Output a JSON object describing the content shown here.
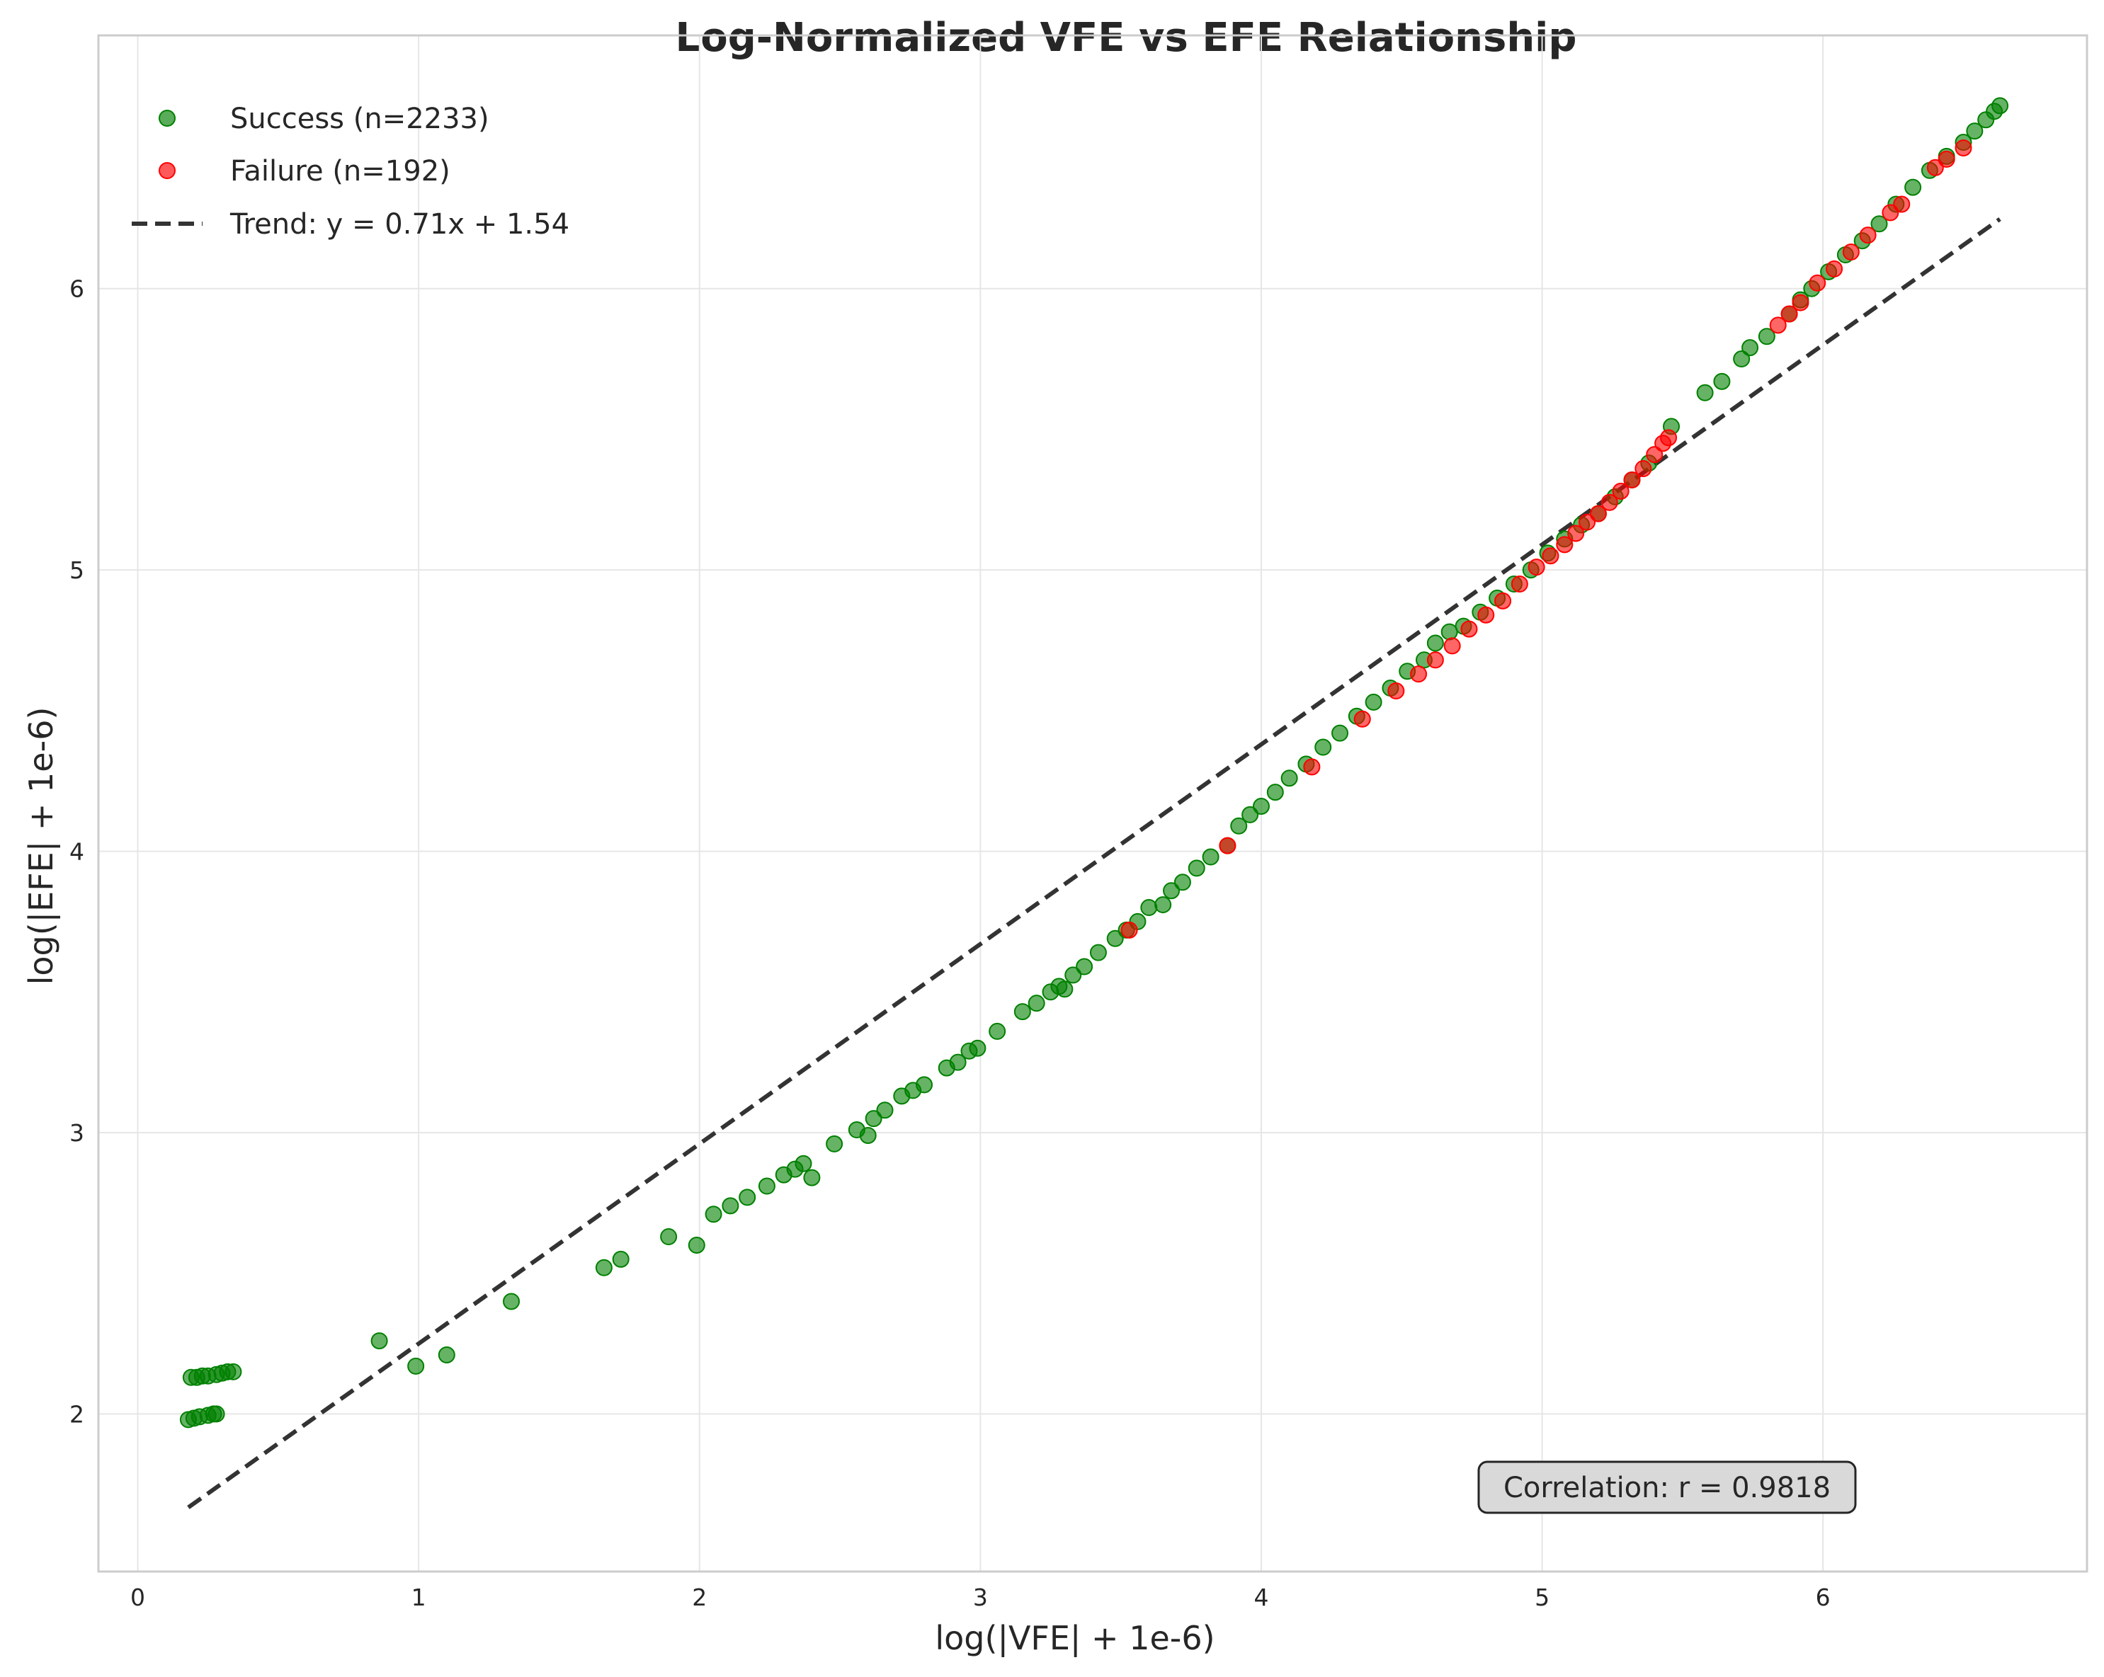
{
  "chart_data": {
    "type": "scatter",
    "title": "Log-Normalized VFE vs EFE Relationship",
    "xlabel": "log(|VFE| + 1e-6)",
    "ylabel": "log(|EFE| + 1e-6)",
    "xlim": [
      -0.14,
      6.94
    ],
    "ylim": [
      1.44,
      6.9
    ],
    "xticks": [
      0,
      1,
      2,
      3,
      4,
      5,
      6
    ],
    "yticks": [
      2,
      3,
      4,
      5,
      6
    ],
    "grid": true,
    "legend_position": "top-left",
    "annotation": "Correlation: r = 0.9818",
    "series": [
      {
        "name": "Success (n=2233)",
        "color": "#008000",
        "points": [
          [
            0.18,
            1.98
          ],
          [
            0.2,
            1.985
          ],
          [
            0.22,
            1.99
          ],
          [
            0.25,
            1.995
          ],
          [
            0.27,
            2.0
          ],
          [
            0.28,
            2.0
          ],
          [
            0.19,
            2.13
          ],
          [
            0.21,
            2.13
          ],
          [
            0.23,
            2.135
          ],
          [
            0.25,
            2.135
          ],
          [
            0.28,
            2.14
          ],
          [
            0.3,
            2.145
          ],
          [
            0.32,
            2.15
          ],
          [
            0.34,
            2.15
          ],
          [
            0.86,
            2.26
          ],
          [
            0.99,
            2.17
          ],
          [
            1.1,
            2.21
          ],
          [
            1.33,
            2.4
          ],
          [
            1.66,
            2.52
          ],
          [
            1.72,
            2.55
          ],
          [
            1.89,
            2.63
          ],
          [
            1.99,
            2.6
          ],
          [
            2.05,
            2.71
          ],
          [
            2.11,
            2.74
          ],
          [
            2.17,
            2.77
          ],
          [
            2.24,
            2.81
          ],
          [
            2.3,
            2.85
          ],
          [
            2.34,
            2.87
          ],
          [
            2.37,
            2.89
          ],
          [
            2.4,
            2.84
          ],
          [
            2.48,
            2.96
          ],
          [
            2.56,
            3.01
          ],
          [
            2.6,
            2.99
          ],
          [
            2.62,
            3.05
          ],
          [
            2.66,
            3.08
          ],
          [
            2.72,
            3.13
          ],
          [
            2.76,
            3.15
          ],
          [
            2.8,
            3.17
          ],
          [
            2.88,
            3.23
          ],
          [
            2.92,
            3.25
          ],
          [
            2.96,
            3.29
          ],
          [
            2.99,
            3.3
          ],
          [
            3.06,
            3.36
          ],
          [
            3.15,
            3.43
          ],
          [
            3.2,
            3.46
          ],
          [
            3.25,
            3.5
          ],
          [
            3.28,
            3.52
          ],
          [
            3.3,
            3.51
          ],
          [
            3.33,
            3.56
          ],
          [
            3.37,
            3.59
          ],
          [
            3.42,
            3.64
          ],
          [
            3.48,
            3.69
          ],
          [
            3.52,
            3.72
          ],
          [
            3.56,
            3.75
          ],
          [
            3.6,
            3.8
          ],
          [
            3.65,
            3.81
          ],
          [
            3.68,
            3.86
          ],
          [
            3.72,
            3.89
          ],
          [
            3.77,
            3.94
          ],
          [
            3.82,
            3.98
          ],
          [
            3.88,
            4.02
          ],
          [
            3.92,
            4.09
          ],
          [
            3.96,
            4.13
          ],
          [
            4.0,
            4.16
          ],
          [
            4.05,
            4.21
          ],
          [
            4.1,
            4.26
          ],
          [
            4.16,
            4.31
          ],
          [
            4.22,
            4.37
          ],
          [
            4.28,
            4.42
          ],
          [
            4.34,
            4.48
          ],
          [
            4.4,
            4.53
          ],
          [
            4.46,
            4.58
          ],
          [
            4.52,
            4.64
          ],
          [
            4.58,
            4.68
          ],
          [
            4.62,
            4.74
          ],
          [
            4.67,
            4.78
          ],
          [
            4.72,
            4.8
          ],
          [
            4.78,
            4.85
          ],
          [
            4.84,
            4.9
          ],
          [
            4.9,
            4.95
          ],
          [
            4.96,
            5.0
          ],
          [
            5.02,
            5.06
          ],
          [
            5.08,
            5.11
          ],
          [
            5.14,
            5.16
          ],
          [
            5.2,
            5.2
          ],
          [
            5.26,
            5.26
          ],
          [
            5.32,
            5.32
          ],
          [
            5.38,
            5.38
          ],
          [
            5.46,
            5.51
          ],
          [
            5.58,
            5.63
          ],
          [
            5.64,
            5.67
          ],
          [
            5.71,
            5.75
          ],
          [
            5.74,
            5.79
          ],
          [
            5.8,
            5.83
          ],
          [
            5.88,
            5.91
          ],
          [
            5.92,
            5.96
          ],
          [
            5.96,
            6.0
          ],
          [
            6.02,
            6.06
          ],
          [
            6.08,
            6.12
          ],
          [
            6.14,
            6.17
          ],
          [
            6.2,
            6.23
          ],
          [
            6.26,
            6.3
          ],
          [
            6.32,
            6.36
          ],
          [
            6.38,
            6.42
          ],
          [
            6.44,
            6.47
          ],
          [
            6.5,
            6.52
          ],
          [
            6.54,
            6.56
          ],
          [
            6.58,
            6.6
          ],
          [
            6.61,
            6.63
          ],
          [
            6.63,
            6.65
          ]
        ]
      },
      {
        "name": "Failure (n=192)",
        "color": "#ff0000",
        "points": [
          [
            3.53,
            3.72
          ],
          [
            3.88,
            4.02
          ],
          [
            4.18,
            4.3
          ],
          [
            4.36,
            4.47
          ],
          [
            4.48,
            4.57
          ],
          [
            4.56,
            4.63
          ],
          [
            4.62,
            4.68
          ],
          [
            4.68,
            4.73
          ],
          [
            4.74,
            4.79
          ],
          [
            4.8,
            4.84
          ],
          [
            4.86,
            4.89
          ],
          [
            4.92,
            4.95
          ],
          [
            4.98,
            5.01
          ],
          [
            5.03,
            5.05
          ],
          [
            5.08,
            5.09
          ],
          [
            5.12,
            5.13
          ],
          [
            5.16,
            5.17
          ],
          [
            5.2,
            5.2
          ],
          [
            5.24,
            5.24
          ],
          [
            5.28,
            5.28
          ],
          [
            5.32,
            5.32
          ],
          [
            5.36,
            5.36
          ],
          [
            5.4,
            5.41
          ],
          [
            5.43,
            5.45
          ],
          [
            5.45,
            5.47
          ],
          [
            5.84,
            5.87
          ],
          [
            5.88,
            5.91
          ],
          [
            5.92,
            5.95
          ],
          [
            5.98,
            6.02
          ],
          [
            6.04,
            6.07
          ],
          [
            6.1,
            6.13
          ],
          [
            6.16,
            6.19
          ],
          [
            6.24,
            6.27
          ],
          [
            6.28,
            6.3
          ],
          [
            6.4,
            6.43
          ],
          [
            6.44,
            6.46
          ],
          [
            6.5,
            6.5
          ]
        ]
      }
    ],
    "trend": {
      "name": "Trend: y = 0.71x + 1.54",
      "slope": 0.71,
      "intercept": 1.54,
      "x_range": [
        0.18,
        6.63
      ],
      "color": "#333333"
    }
  }
}
